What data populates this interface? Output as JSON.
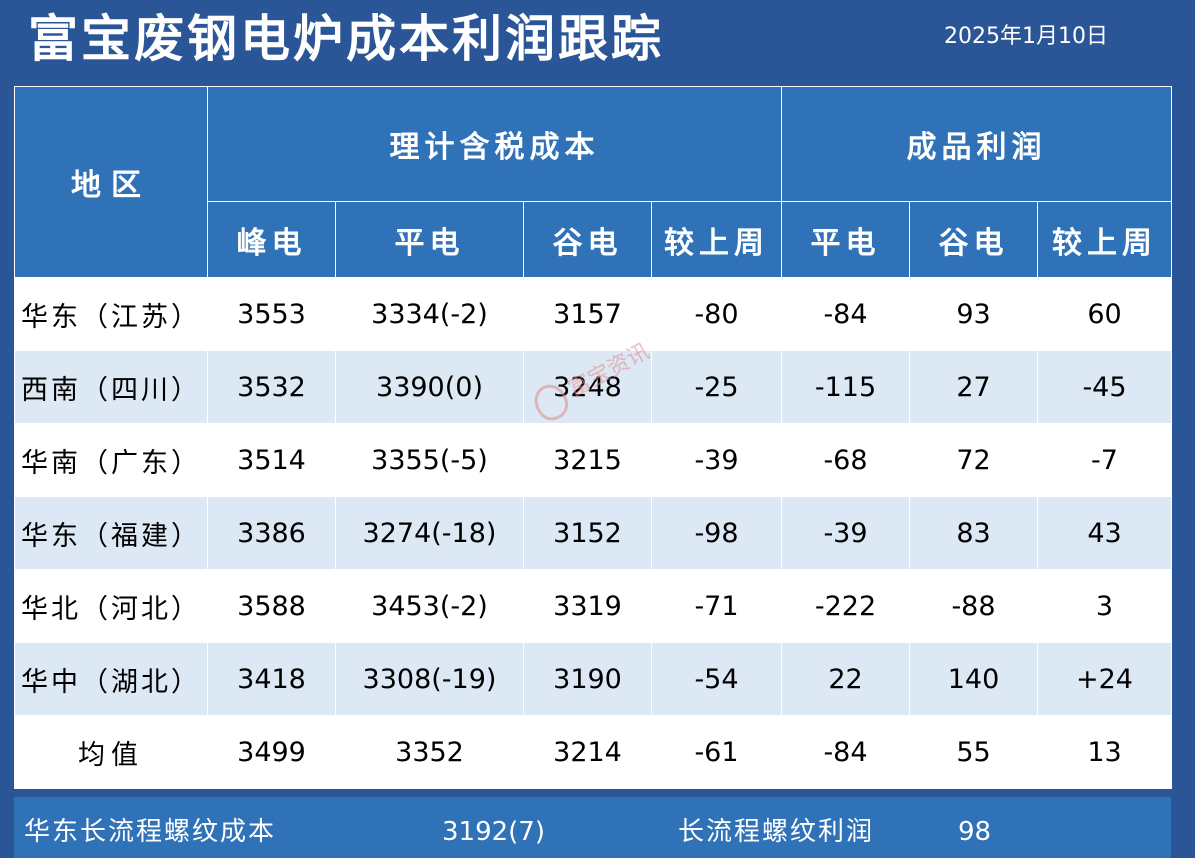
{
  "title": "富宝废钢电炉成本利润跟踪",
  "date": "2025年1月10日",
  "header": {
    "region": "地区",
    "cost_group": "理计含税成本",
    "profit_group": "成品利润",
    "cost_cols": [
      "峰电",
      "平电",
      "谷电",
      "较上周"
    ],
    "profit_cols": [
      "平电",
      "谷电",
      "较上周"
    ]
  },
  "rows": [
    {
      "region": "华东（江苏）",
      "peak": "3553",
      "flat": "3334(-2)",
      "valley": "3157",
      "cost_wow": "-80",
      "profit_flat": "-84",
      "profit_valley": "93",
      "profit_wow": "60"
    },
    {
      "region": "西南（四川）",
      "peak": "3532",
      "flat": "3390(0)",
      "valley": "3248",
      "cost_wow": "-25",
      "profit_flat": "-115",
      "profit_valley": "27",
      "profit_wow": "-45"
    },
    {
      "region": "华南（广东）",
      "peak": "3514",
      "flat": "3355(-5)",
      "valley": "3215",
      "cost_wow": "-39",
      "profit_flat": "-68",
      "profit_valley": "72",
      "profit_wow": "-7"
    },
    {
      "region": "华东（福建）",
      "peak": "3386",
      "flat": "3274(-18)",
      "valley": "3152",
      "cost_wow": "-98",
      "profit_flat": "-39",
      "profit_valley": "83",
      "profit_wow": "43"
    },
    {
      "region": "华北（河北）",
      "peak": "3588",
      "flat": "3453(-2)",
      "valley": "3319",
      "cost_wow": "-71",
      "profit_flat": "-222",
      "profit_valley": "-88",
      "profit_wow": "3"
    },
    {
      "region": "华中（湖北）",
      "peak": "3418",
      "flat": "3308(-19)",
      "valley": "3190",
      "cost_wow": "-54",
      "profit_flat": "22",
      "profit_valley": "140",
      "profit_wow": "+24"
    },
    {
      "region": "均值",
      "peak": "3499",
      "flat": "3352",
      "valley": "3214",
      "cost_wow": "-61",
      "profit_flat": "-84",
      "profit_valley": "55",
      "profit_wow": "13"
    }
  ],
  "footer": {
    "cost_label": "华东长流程螺纹成本",
    "cost_value": "3192(7)",
    "profit_label": "长流程螺纹利润",
    "profit_value": "98"
  },
  "watermark": "富宝资讯",
  "colors": {
    "positive": "#e82020",
    "negative": "#17a02f",
    "header": "#2f72b8",
    "background": "#2a5698"
  }
}
